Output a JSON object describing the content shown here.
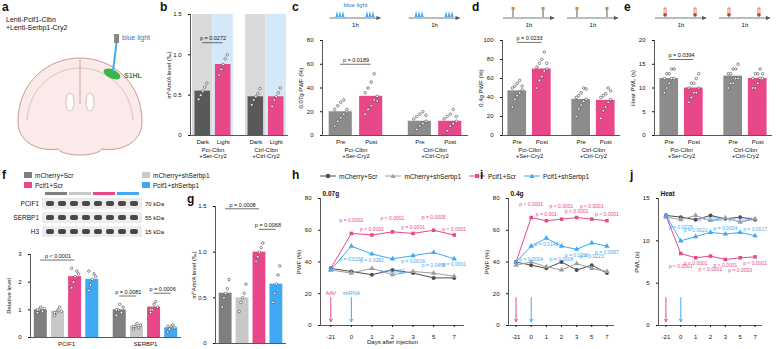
{
  "diagram": {
    "panel": "a",
    "virus": "Lenti-Pcif1-Cibn\n+Lenti-Serbp1-Cry2",
    "light": "blue light",
    "region": "S1HL"
  },
  "chart_data": [
    {
      "panel": "b",
      "type": "bar",
      "y_label": "m⁶Am/A level (‰)",
      "ylim": [
        0,
        1.5
      ],
      "yticks": [
        0,
        0.5,
        {
          "value": 1,
          "label": "1.0"
        },
        1.5
      ],
      "groups": [
        {
          "name": "Pci-Cibn\n+Ser-Cry2",
          "categories": [
            "Dark",
            "Light"
          ],
          "colors": [
            "#595959",
            "#e8488a"
          ],
          "values": [
            0.55,
            0.88
          ],
          "points": [
            [
              0.45,
              0.5,
              0.55,
              0.6,
              0.65
            ],
            [
              0.75,
              0.82,
              0.88,
              0.95,
              1.0
            ]
          ],
          "comparisons": [
            {
              "between": [
                "Dark",
                "Light"
              ],
              "label": "p = 0.0272"
            }
          ]
        },
        {
          "name": "Ctrl-Cibn\n+Ctrl-Cry2",
          "categories": [
            "Dark",
            "Light"
          ],
          "colors": [
            "#595959",
            "#e8488a"
          ],
          "values": [
            0.48,
            0.48
          ],
          "points": [
            [
              0.38,
              0.44,
              0.48,
              0.52,
              0.58
            ],
            [
              0.36,
              0.44,
              0.48,
              0.53,
              0.59
            ]
          ]
        }
      ]
    },
    {
      "panel": "c",
      "type": "bar",
      "y_label": "0.07g PWF (%)",
      "ylim": [
        0,
        80
      ],
      "yticks": [
        0,
        20,
        40,
        60,
        80
      ],
      "protocol": {
        "light": "blue light",
        "duration": "1h"
      },
      "groups": [
        {
          "name": "Pci-Cibn\n+Ser-Cry2",
          "categories": [
            "Pre",
            "Post"
          ],
          "colors": [
            "#8c8c8c",
            "#e8488a"
          ],
          "values": [
            20,
            33
          ],
          "points": [
            [
              8,
              12,
              15,
              18,
              20,
              22,
              25,
              28,
              30,
              22
            ],
            [
              18,
              22,
              25,
              30,
              33,
              36,
              40,
              45,
              52,
              29
            ]
          ],
          "comparisons": [
            {
              "between": [
                "Pre",
                "Post"
              ],
              "label": "p = 0.0189"
            }
          ]
        },
        {
          "name": "Ctrl-Cibn\n+Ctrl-Cry2",
          "categories": [
            "Pre",
            "Post"
          ],
          "colors": [
            "#8c8c8c",
            "#e8488a"
          ],
          "values": [
            12,
            12
          ],
          "points": [
            [
              0,
              5,
              8,
              10,
              12,
              14,
              16,
              18,
              20,
              17
            ],
            [
              0,
              4,
              8,
              10,
              12,
              14,
              16,
              18,
              22,
              16
            ]
          ]
        }
      ]
    },
    {
      "panel": "d",
      "type": "bar",
      "y_label": "0.4g PWF (%)",
      "ylim": [
        0,
        100
      ],
      "yticks": [
        0,
        20,
        40,
        60,
        80,
        100
      ],
      "protocol": {
        "duration": "1h"
      },
      "groups": [
        {
          "name": "Pci-Cibn\n+Ser-Cry2",
          "categories": [
            "Pre",
            "Post"
          ],
          "colors": [
            "#8c8c8c",
            "#e8488a"
          ],
          "values": [
            47,
            70
          ],
          "points": [
            [
              30,
              38,
              42,
              45,
              48,
              50,
              52,
              55,
              58,
              52
            ],
            [
              50,
              58,
              62,
              68,
              70,
              72,
              76,
              80,
              88,
              76
            ]
          ],
          "comparisons": [
            {
              "between": [
                "Pre",
                "Post"
              ],
              "label": "p = 0.0233"
            }
          ]
        },
        {
          "name": "Ctrl-Cibn\n+Ctrl-Cry2",
          "categories": [
            "Pre",
            "Post"
          ],
          "colors": [
            "#8c8c8c",
            "#e8488a"
          ],
          "values": [
            38,
            37
          ],
          "points": [
            [
              20,
              28,
              32,
              36,
              38,
              40,
              42,
              45,
              50,
              49
            ],
            [
              18,
              26,
              30,
              35,
              38,
              40,
              42,
              44,
              50,
              47
            ]
          ]
        }
      ]
    },
    {
      "panel": "e",
      "type": "bar",
      "y_label": "Heat PWL (s)",
      "ylim": [
        0,
        20
      ],
      "yticks": [
        0,
        5,
        10,
        15,
        20
      ],
      "protocol": {
        "duration": "1h"
      },
      "groups": [
        {
          "name": "Pci-Cibn\n+Ser-Cry2",
          "categories": [
            "Pre",
            "Post"
          ],
          "colors": [
            "#8c8c8c",
            "#e8488a"
          ],
          "values": [
            12,
            10
          ],
          "points": [
            [
              9,
              10,
              11,
              12,
              12,
              12,
              13,
              13,
              14,
              14
            ],
            [
              7,
              8,
              9,
              9,
              10,
              10,
              11,
              11,
              12,
              13
            ]
          ],
          "comparisons": [
            {
              "between": [
                "Pre",
                "Post"
              ],
              "label": "p = 0.0394"
            }
          ]
        },
        {
          "name": "Ctrl-Cibn\n+Ctrl-Cry2",
          "categories": [
            "Pre",
            "Post"
          ],
          "colors": [
            "#8c8c8c",
            "#e8488a"
          ],
          "values": [
            12.5,
            12
          ],
          "points": [
            [
              10,
              11,
              11,
              12,
              12,
              13,
              13,
              14,
              14,
              15
            ],
            [
              10,
              10,
              11,
              12,
              12,
              12,
              13,
              13,
              14,
              13
            ]
          ]
        }
      ]
    },
    {
      "panel": "f",
      "type": "bar",
      "y_label": "Relative level",
      "ylim": [
        0,
        3
      ],
      "yticks": [
        0,
        1,
        2,
        3
      ],
      "legend": "top",
      "blot": {
        "rows": [
          {
            "name": "PCIF1",
            "size": "70 kDa"
          },
          {
            "name": "SERBP1",
            "size": "55 kDa"
          },
          {
            "name": "H3",
            "size": "15 kDa"
          }
        ]
      },
      "categories": [
        "PCIF1",
        "SERBP1"
      ],
      "series": [
        {
          "name": "mCherry+Scr",
          "color": "#7f7f7f",
          "values": [
            1,
            1
          ],
          "points": [
            [
              0.9,
              1,
              1.1,
              0.95,
              1.05,
              1
            ],
            [
              0.8,
              1,
              1.2,
              0.9,
              1.1,
              1
            ]
          ]
        },
        {
          "name": "mCherry+shSerbp1",
          "color": "#c8c8c8",
          "values": [
            0.95,
            0.4
          ],
          "points": [
            [
              0.8,
              0.9,
              1,
              1.1,
              0.95,
              0.9
            ],
            [
              0.3,
              0.4,
              0.5,
              0.35,
              0.45,
              0.4
            ]
          ]
        },
        {
          "name": "Pcif1+Scr",
          "color": "#e8488a",
          "values": [
            2.2,
            1.1
          ],
          "points": [
            [
              1.8,
              2,
              2.2,
              2.4,
              2.3,
              2.5
            ],
            [
              0.9,
              1,
              1.2,
              1.3,
              1.1,
              1
            ]
          ]
        },
        {
          "name": "Pcif1+shSerbp1",
          "color": "#3fa9f5",
          "values": [
            2.1,
            0.35
          ],
          "points": [
            [
              1.7,
              1.9,
              2.1,
              2.3,
              2.2,
              2.4
            ],
            [
              0.2,
              0.3,
              0.4,
              0.45,
              0.35,
              0.4
            ]
          ]
        }
      ],
      "comparisons": [
        {
          "category": "PCIF1",
          "between": [
            "mCherry+Scr",
            "Pcif1+Scr"
          ],
          "label": "p < 0.0001"
        },
        {
          "category": "SERBP1",
          "between": [
            "mCherry+Scr",
            "mCherry+shSerbp1"
          ],
          "label": "p = 0.0081"
        },
        {
          "category": "SERBP1",
          "between": [
            "Pcif1+Scr",
            "Pcif1+shSerbp1"
          ],
          "label": "p = 0.0006"
        }
      ]
    },
    {
      "panel": "g",
      "type": "bar",
      "y_label": "m⁶Am/A level (‰)",
      "ylim": [
        0,
        1.5
      ],
      "yticks": [
        0,
        0.5,
        {
          "value": 1,
          "label": "1.0"
        },
        1.5
      ],
      "categories": [
        "mCherry+Scr",
        "mCherry+shSerbp1",
        "Pcif1+Scr",
        "Pcif1+shSerbp1"
      ],
      "colors": [
        "#7f7f7f",
        "#c8c8c8",
        "#e8488a",
        "#3fa9f5"
      ],
      "values": [
        0.55,
        0.5,
        1.0,
        0.65
      ],
      "points": [
        [
          0.4,
          0.5,
          0.55,
          0.6,
          0.7
        ],
        [
          0.35,
          0.45,
          0.5,
          0.55,
          0.65
        ],
        [
          0.9,
          0.95,
          1.0,
          1.05,
          1.1
        ],
        [
          0.45,
          0.55,
          0.65,
          0.75,
          0.85
        ]
      ],
      "comparisons": [
        {
          "between": [
            "mCherry+Scr",
            "Pcif1+Scr"
          ],
          "label": "p = 0.0008"
        },
        {
          "between": [
            "Pcif1+Scr",
            "Pcif1+shSerbp1"
          ],
          "label": "p = 0.0068"
        }
      ]
    },
    {
      "panel": "h",
      "type": "line",
      "annotation": "0.07g",
      "y_label": "PWF (%)",
      "x_label": "Days after injection",
      "legend": "top",
      "categories": [
        "-21",
        "0",
        "1",
        "2",
        "3",
        "5",
        "7"
      ],
      "ylim": [
        0,
        80
      ],
      "yticks": [
        0,
        20,
        40,
        60,
        80
      ],
      "events": [
        {
          "label": "AAV",
          "at": "-21",
          "color": "#e8488a"
        },
        {
          "label": "shRNA",
          "at": "0",
          "color": "#3fa9f5"
        }
      ],
      "series": [
        {
          "name": "mCherry+Scr",
          "color": "#4d4d4d",
          "marker": "circle",
          "values": [
            36,
            34,
            32,
            35,
            33,
            30,
            30
          ]
        },
        {
          "name": "mCherry+shSerbp1",
          "color": "#9e9e9e",
          "marker": "triangle",
          "values": [
            35,
            33,
            36,
            32,
            34,
            33,
            31
          ]
        },
        {
          "name": "Pcif1+Scr",
          "color": "#e8488a",
          "marker": "square",
          "values": [
            36,
            58,
            57,
            59,
            58,
            60,
            57
          ],
          "p_labels": [
            null,
            "p = 0.0002",
            "p < 0.0001",
            "p < 0.0001",
            "p = 0.0001",
            "p = 0.0005",
            "p < 0.0001"
          ]
        },
        {
          "name": "Pcif1+shSerbp1",
          "color": "#3fa9f5",
          "marker": "triangle",
          "values": [
            35,
            50,
            45,
            42,
            44,
            46,
            42
          ],
          "p_labels": [
            null,
            "p = 0.0237",
            "p = 0.0282",
            "p = 0.0462",
            "p = 0.0016",
            "p = 0.0468",
            "p = 0.0001"
          ]
        }
      ]
    },
    {
      "panel": "i",
      "type": "line",
      "annotation": "0.4g",
      "y_label": "PWF (%)",
      "categories": [
        "-21",
        "0",
        "1",
        "2",
        "3",
        "5",
        "7"
      ],
      "ylim": [
        0,
        80
      ],
      "yticks": [
        0,
        20,
        40,
        60,
        80
      ],
      "events": [
        {
          "at": "-21",
          "color": "#e8488a"
        },
        {
          "at": "0",
          "color": "#3fa9f5"
        }
      ],
      "series": [
        {
          "name": "mCherry+Scr",
          "color": "#4d4d4d",
          "marker": "circle",
          "values": [
            40,
            38,
            36,
            40,
            35,
            38,
            33
          ]
        },
        {
          "name": "mCherry+shSerbp1",
          "color": "#9e9e9e",
          "marker": "triangle",
          "values": [
            38,
            40,
            37,
            35,
            39,
            36,
            34
          ]
        },
        {
          "name": "Pcif1+Scr",
          "color": "#e8488a",
          "marker": "square",
          "values": [
            40,
            68,
            66,
            67,
            68,
            67,
            66
          ],
          "p_labels": [
            null,
            "p < 0.0001",
            "p = 0.001",
            "p < 0.0001",
            "p < 0.0001",
            "p < 0.0001",
            "p < 0.0001"
          ]
        },
        {
          "name": "Pcif1+shSerbp1",
          "color": "#3fa9f5",
          "marker": "triangle",
          "values": [
            40,
            50,
            55,
            50,
            48,
            52,
            50
          ],
          "p_labels": [
            null,
            "p = 0.0004",
            "p = 0.0149",
            "p = 0.0008",
            "p = 0.0256",
            "p = 0.0223",
            "p = 0.0067"
          ]
        }
      ]
    },
    {
      "panel": "j",
      "type": "line",
      "annotation": "Heat",
      "y_label": "PWL (s)",
      "categories": [
        "-21",
        "0",
        "1",
        "2",
        "3",
        "5",
        "7"
      ],
      "ylim": [
        0,
        15
      ],
      "yticks": [
        0,
        5,
        10,
        15
      ],
      "events": [
        {
          "at": "-21",
          "color": "#e8488a"
        },
        {
          "at": "0",
          "color": "#3fa9f5"
        }
      ],
      "series": [
        {
          "name": "mCherry+Scr",
          "color": "#4d4d4d",
          "marker": "circle",
          "values": [
            13,
            12.8,
            12.5,
            13,
            12.6,
            12.8,
            12.5
          ]
        },
        {
          "name": "mCherry+shSerbp1",
          "color": "#9e9e9e",
          "marker": "triangle",
          "values": [
            12.8,
            12.5,
            13,
            12.4,
            12.7,
            12.2,
            12.6
          ]
        },
        {
          "name": "Pcif1+Scr",
          "color": "#e8488a",
          "marker": "square",
          "values": [
            13,
            8.5,
            8,
            8.2,
            7.8,
            8,
            8.1
          ],
          "p_labels": [
            null,
            "p < 0.0001",
            "p < 0.0001",
            "p < 0.0001",
            "p < 0.0001",
            "p = 0.0003",
            "p < 0.0001"
          ]
        },
        {
          "name": "Pcif1+shSerbp1",
          "color": "#3fa9f5",
          "marker": "triangle",
          "values": [
            13,
            10,
            10.5,
            11,
            10.8,
            11,
            10.6
          ],
          "p_labels": [
            null,
            "p = 0.0028",
            "p = 0.0021",
            "p = 0.0281",
            "p = 0.0024",
            "p = 0.0144",
            "p = 0.0017"
          ]
        }
      ]
    }
  ]
}
